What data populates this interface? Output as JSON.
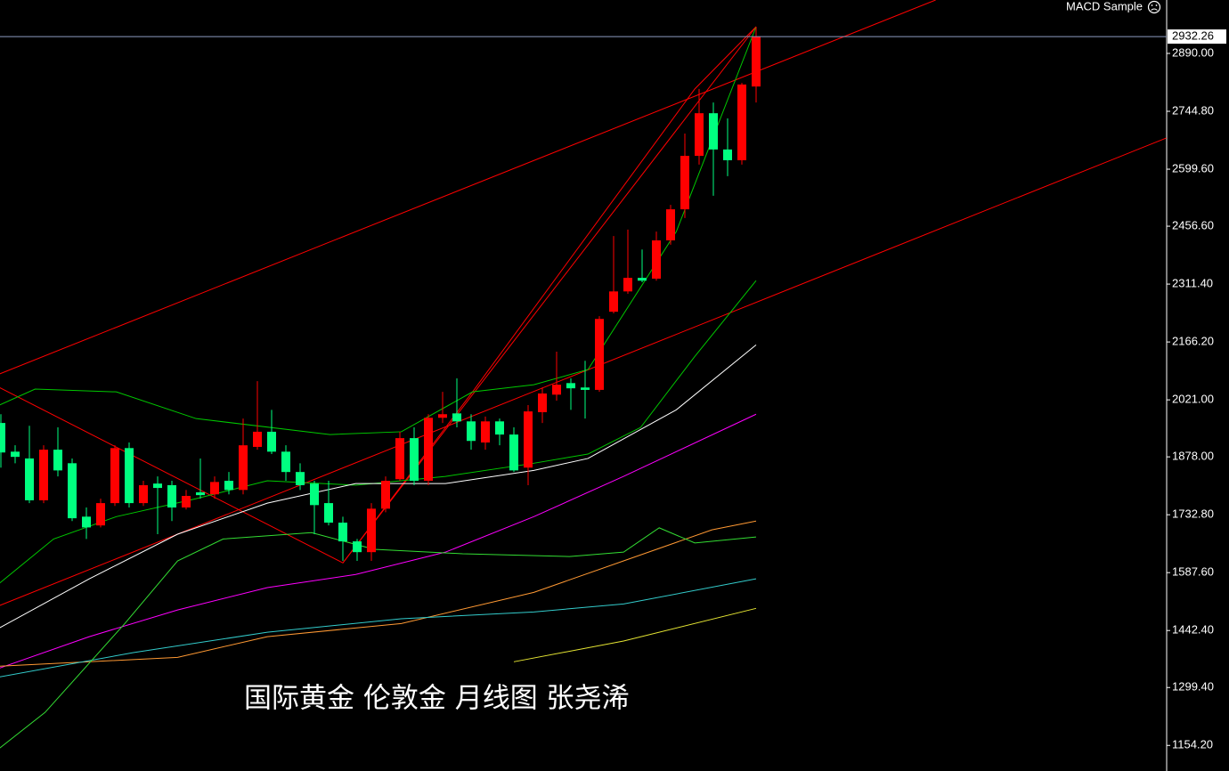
{
  "chart_data": {
    "type": "candlestick",
    "title": "国际黄金 伦敦金 月线图 张尧浠",
    "indicator": "MACD Sample",
    "current_price": 2932.26,
    "up_color": "#ff0000",
    "down_color": "#00ff80",
    "ylim": [
      1090,
      3024
    ],
    "yticks": [
      {
        "value": 2890,
        "label": "2890.00"
      },
      {
        "value": 2744.8,
        "label": "2744.80"
      },
      {
        "value": 2599.6,
        "label": "2599.60"
      },
      {
        "value": 2456.6,
        "label": "2456.60"
      },
      {
        "value": 2311.4,
        "label": "2311.40"
      },
      {
        "value": 2166.2,
        "label": "2166.20"
      },
      {
        "value": 2021,
        "label": "2021.00"
      },
      {
        "value": 1878,
        "label": "1878.00"
      },
      {
        "value": 1732.8,
        "label": "1732.80"
      },
      {
        "value": 1587.6,
        "label": "1587.60"
      },
      {
        "value": 1442.4,
        "label": "1442.40"
      },
      {
        "value": 1299.4,
        "label": "1299.40"
      },
      {
        "value": 1154.2,
        "label": "1154.20"
      }
    ],
    "open": [
      1963,
      1891,
      1874,
      1769,
      1896,
      1862,
      1728,
      1706,
      1762,
      1900,
      1762,
      1811,
      1807,
      1751,
      1789,
      1784,
      1818,
      1795,
      1903,
      1941,
      1891,
      1840,
      1811,
      1762,
      1713,
      1666,
      1639,
      1748,
      1822,
      1925,
      1818,
      1976,
      1987,
      1967,
      1914,
      1967,
      1934,
      1851,
      1990,
      2034,
      2063,
      2052,
      2046,
      2242,
      2293,
      2327,
      2325,
      2421,
      2499,
      2633,
      2740,
      2649,
      2622,
      2807
    ],
    "high": [
      1985,
      1907,
      1956,
      1907,
      1952,
      1874,
      1751,
      1773,
      1907,
      1914,
      1818,
      1829,
      1818,
      1795,
      1874,
      1829,
      1840,
      1974,
      2068,
      1996,
      1907,
      1862,
      1818,
      1818,
      1728,
      1672,
      1762,
      1829,
      1941,
      1952,
      1985,
      2041,
      2075,
      1985,
      1979,
      1974,
      1952,
      2008,
      2052,
      2142,
      2075,
      2119,
      2231,
      2432,
      2448,
      2398,
      2443,
      2510,
      2689,
      2801,
      2767,
      2727,
      2816,
      2957
    ],
    "low": [
      1851,
      1862,
      1762,
      1762,
      1829,
      1717,
      1672,
      1701,
      1755,
      1751,
      1755,
      1684,
      1717,
      1746,
      1773,
      1773,
      1784,
      1784,
      1896,
      1885,
      1818,
      1795,
      1684,
      1706,
      1617,
      1617,
      1617,
      1739,
      1818,
      1807,
      1807,
      1963,
      1952,
      1896,
      1896,
      1907,
      1840,
      1807,
      1963,
      2019,
      1996,
      1974,
      2041,
      2238,
      2287,
      2316,
      2320,
      2410,
      2477,
      2611,
      2533,
      2582,
      2611,
      2767
    ],
    "close": [
      1889,
      1878,
      1769,
      1896,
      1844,
      1724,
      1701,
      1762,
      1900,
      1762,
      1807,
      1800,
      1751,
      1780,
      1782,
      1815,
      1795,
      1907,
      1941,
      1891,
      1840,
      1807,
      1757,
      1713,
      1666,
      1639,
      1748,
      1818,
      1925,
      1818,
      1976,
      1985,
      1967,
      1918,
      1967,
      1934,
      1844,
      1992,
      2037,
      2059,
      2050,
      2046,
      2224,
      2293,
      2327,
      2320,
      2421,
      2499,
      2633,
      2740,
      2649,
      2622,
      2812,
      2932.26
    ],
    "overlays": [
      {
        "color": "#ff0000",
        "x": [
          -0.1,
          65.6
        ],
        "values": [
          2086,
          3024
        ]
      },
      {
        "color": "#ff0000",
        "x": [
          -0.1,
          81.8
        ],
        "values": [
          1505,
          2678
        ]
      },
      {
        "color": "#ff0000",
        "x": [
          -0.1,
          24,
          53
        ],
        "values": [
          2052,
          1612,
          2957
        ]
      },
      {
        "color": "#ff0000",
        "x": [
          24,
          33.1,
          48.7,
          53
        ],
        "values": [
          1612,
          2041,
          2801,
          2957
        ]
      },
      {
        "color": "#00c800",
        "x": [
          -0.1,
          2.4,
          8.1,
          13.7,
          23.1,
          28.1,
          33.1,
          37.4,
          41.2,
          47.4,
          53
        ],
        "values": [
          2008,
          2048,
          2041,
          1974,
          1934,
          1941,
          2041,
          2059,
          2097,
          2443,
          2957
        ]
      },
      {
        "color": "#00c800",
        "x": [
          -0.1,
          3.7,
          8.1,
          13.7,
          18.7,
          24.9,
          31.2,
          37.4,
          41.2,
          44.9,
          48.7,
          53
        ],
        "values": [
          1561,
          1672,
          1728,
          1773,
          1818,
          1807,
          1829,
          1862,
          1885,
          1952,
          2130,
          2320
        ]
      },
      {
        "color": "#ffffff",
        "x": [
          -0.1,
          6.2,
          12.4,
          18.7,
          24.9,
          31.2,
          37.4,
          41.2,
          47.4,
          53
        ],
        "values": [
          1449,
          1572,
          1684,
          1762,
          1811,
          1811,
          1844,
          1874,
          1996,
          2159
        ]
      },
      {
        "color": "#ff00ff",
        "x": [
          -0.1,
          6.2,
          12.4,
          18.7,
          24.9,
          31.2,
          37.4,
          43.7,
          53
        ],
        "values": [
          1348,
          1427,
          1494,
          1550,
          1583,
          1639,
          1728,
          1829,
          1985
        ]
      },
      {
        "color": "#ff9933",
        "x": [
          -0.1,
          12.4,
          18.7,
          28.1,
          37.4,
          43.7,
          49.9,
          53
        ],
        "values": [
          1353,
          1375,
          1427,
          1460,
          1538,
          1617,
          1695,
          1717
        ]
      },
      {
        "color": "#33cccc",
        "x": [
          -0.1,
          9.3,
          18.7,
          28.1,
          37.4,
          43.7,
          53
        ],
        "values": [
          1326,
          1387,
          1438,
          1472,
          1489,
          1509,
          1572
        ]
      },
      {
        "color": "#e6e633",
        "x": [
          36,
          43.7,
          53
        ],
        "values": [
          1364,
          1416,
          1498
        ]
      },
      {
        "color": "#33dd33",
        "x": [
          -0.1,
          3.1,
          8.7,
          12.4,
          15.6,
          21.8,
          26.2,
          32.4,
          39.9,
          43.7,
          46.2,
          48.7,
          53
        ],
        "values": [
          1147,
          1237,
          1460,
          1617,
          1672,
          1688,
          1646,
          1635,
          1628,
          1639,
          1700,
          1662,
          1677
        ]
      }
    ]
  }
}
